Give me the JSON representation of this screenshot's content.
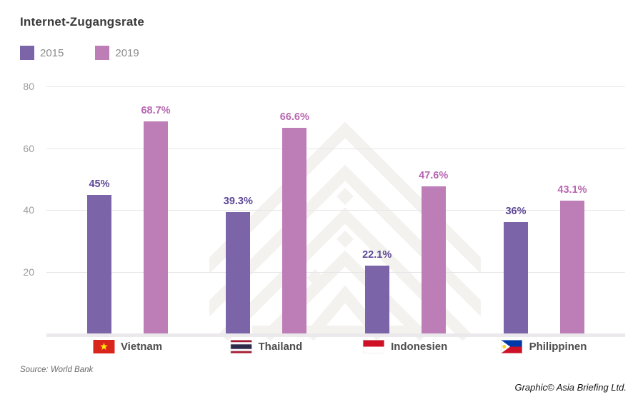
{
  "title": "Internet-Zugangsrate",
  "legend": {
    "items": [
      {
        "label": "2015",
        "color": "#7b64a8"
      },
      {
        "label": "2019",
        "color": "#bd7eb8"
      }
    ]
  },
  "chart_data": {
    "type": "bar",
    "title": "Internet-Zugangsrate",
    "categories": [
      "Vietnam",
      "Thailand",
      "Indonesien",
      "Philippinen"
    ],
    "category_flags": [
      "vietnam",
      "thailand",
      "indonesien",
      "philippinen"
    ],
    "series": [
      {
        "name": "2015",
        "color": "#7b64a8",
        "label_color": "#5e4897",
        "values": [
          45,
          39.3,
          22.1,
          36
        ],
        "data_labels": [
          "45%",
          "39.3%",
          "22.1%",
          "36%"
        ]
      },
      {
        "name": "2019",
        "color": "#bd7eb8",
        "label_color": "#b767b0",
        "values": [
          68.7,
          66.6,
          47.6,
          43.1
        ],
        "data_labels": [
          "68.7%",
          "66.6%",
          "47.6%",
          "43.1%"
        ]
      }
    ],
    "xlabel": "",
    "ylabel": "",
    "ylim": [
      0,
      80
    ],
    "yticks": [
      20,
      40,
      60,
      80
    ],
    "grid": true,
    "legend_position": "top-left",
    "watermark": "asia-briefing-logo"
  },
  "flag_colors": {
    "vietnam_red": "#da251d",
    "vietnam_star": "#ffe600",
    "thailand_red": "#a51931",
    "thailand_white": "#f4f5f8",
    "thailand_navy": "#2d2a4a",
    "indonesien_red": "#ce1126",
    "indonesien_white": "#ffffff",
    "philippinen_blue": "#0038a8",
    "philippinen_red": "#ce1126",
    "philippinen_white": "#ffffff",
    "philippinen_sun": "#fcd116"
  },
  "footer": {
    "source": "Source: World Bank",
    "credit": "Graphic© Asia Briefing Ltd."
  }
}
